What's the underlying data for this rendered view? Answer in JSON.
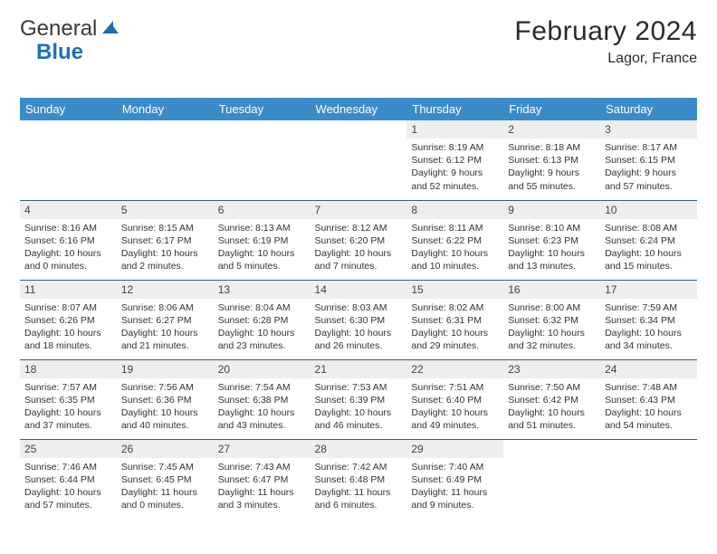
{
  "brand": {
    "part1": "General",
    "part2": "Blue",
    "logo_color": "#1f6fb2"
  },
  "title": "February 2024",
  "location": "Lagor, France",
  "colors": {
    "header_bg": "#3b8bc9",
    "header_fg": "#ffffff",
    "row_border": "#2f5f8f",
    "daynum_bg": "#eeeeee",
    "text": "#333333"
  },
  "fonts": {
    "title_size": 30,
    "location_size": 16,
    "weekday_size": 13,
    "daynum_size": 12,
    "cell_size": 10.5
  },
  "weekdays": [
    "Sunday",
    "Monday",
    "Tuesday",
    "Wednesday",
    "Thursday",
    "Friday",
    "Saturday"
  ],
  "grid": [
    [
      {
        "blank": true
      },
      {
        "blank": true
      },
      {
        "blank": true
      },
      {
        "blank": true
      },
      {
        "day": "1",
        "sunrise": "Sunrise: 8:19 AM",
        "sunset": "Sunset: 6:12 PM",
        "dl1": "Daylight: 9 hours",
        "dl2": "and 52 minutes."
      },
      {
        "day": "2",
        "sunrise": "Sunrise: 8:18 AM",
        "sunset": "Sunset: 6:13 PM",
        "dl1": "Daylight: 9 hours",
        "dl2": "and 55 minutes."
      },
      {
        "day": "3",
        "sunrise": "Sunrise: 8:17 AM",
        "sunset": "Sunset: 6:15 PM",
        "dl1": "Daylight: 9 hours",
        "dl2": "and 57 minutes."
      }
    ],
    [
      {
        "day": "4",
        "sunrise": "Sunrise: 8:16 AM",
        "sunset": "Sunset: 6:16 PM",
        "dl1": "Daylight: 10 hours",
        "dl2": "and 0 minutes."
      },
      {
        "day": "5",
        "sunrise": "Sunrise: 8:15 AM",
        "sunset": "Sunset: 6:17 PM",
        "dl1": "Daylight: 10 hours",
        "dl2": "and 2 minutes."
      },
      {
        "day": "6",
        "sunrise": "Sunrise: 8:13 AM",
        "sunset": "Sunset: 6:19 PM",
        "dl1": "Daylight: 10 hours",
        "dl2": "and 5 minutes."
      },
      {
        "day": "7",
        "sunrise": "Sunrise: 8:12 AM",
        "sunset": "Sunset: 6:20 PM",
        "dl1": "Daylight: 10 hours",
        "dl2": "and 7 minutes."
      },
      {
        "day": "8",
        "sunrise": "Sunrise: 8:11 AM",
        "sunset": "Sunset: 6:22 PM",
        "dl1": "Daylight: 10 hours",
        "dl2": "and 10 minutes."
      },
      {
        "day": "9",
        "sunrise": "Sunrise: 8:10 AM",
        "sunset": "Sunset: 6:23 PM",
        "dl1": "Daylight: 10 hours",
        "dl2": "and 13 minutes."
      },
      {
        "day": "10",
        "sunrise": "Sunrise: 8:08 AM",
        "sunset": "Sunset: 6:24 PM",
        "dl1": "Daylight: 10 hours",
        "dl2": "and 15 minutes."
      }
    ],
    [
      {
        "day": "11",
        "sunrise": "Sunrise: 8:07 AM",
        "sunset": "Sunset: 6:26 PM",
        "dl1": "Daylight: 10 hours",
        "dl2": "and 18 minutes."
      },
      {
        "day": "12",
        "sunrise": "Sunrise: 8:06 AM",
        "sunset": "Sunset: 6:27 PM",
        "dl1": "Daylight: 10 hours",
        "dl2": "and 21 minutes."
      },
      {
        "day": "13",
        "sunrise": "Sunrise: 8:04 AM",
        "sunset": "Sunset: 6:28 PM",
        "dl1": "Daylight: 10 hours",
        "dl2": "and 23 minutes."
      },
      {
        "day": "14",
        "sunrise": "Sunrise: 8:03 AM",
        "sunset": "Sunset: 6:30 PM",
        "dl1": "Daylight: 10 hours",
        "dl2": "and 26 minutes."
      },
      {
        "day": "15",
        "sunrise": "Sunrise: 8:02 AM",
        "sunset": "Sunset: 6:31 PM",
        "dl1": "Daylight: 10 hours",
        "dl2": "and 29 minutes."
      },
      {
        "day": "16",
        "sunrise": "Sunrise: 8:00 AM",
        "sunset": "Sunset: 6:32 PM",
        "dl1": "Daylight: 10 hours",
        "dl2": "and 32 minutes."
      },
      {
        "day": "17",
        "sunrise": "Sunrise: 7:59 AM",
        "sunset": "Sunset: 6:34 PM",
        "dl1": "Daylight: 10 hours",
        "dl2": "and 34 minutes."
      }
    ],
    [
      {
        "day": "18",
        "sunrise": "Sunrise: 7:57 AM",
        "sunset": "Sunset: 6:35 PM",
        "dl1": "Daylight: 10 hours",
        "dl2": "and 37 minutes."
      },
      {
        "day": "19",
        "sunrise": "Sunrise: 7:56 AM",
        "sunset": "Sunset: 6:36 PM",
        "dl1": "Daylight: 10 hours",
        "dl2": "and 40 minutes."
      },
      {
        "day": "20",
        "sunrise": "Sunrise: 7:54 AM",
        "sunset": "Sunset: 6:38 PM",
        "dl1": "Daylight: 10 hours",
        "dl2": "and 43 minutes."
      },
      {
        "day": "21",
        "sunrise": "Sunrise: 7:53 AM",
        "sunset": "Sunset: 6:39 PM",
        "dl1": "Daylight: 10 hours",
        "dl2": "and 46 minutes."
      },
      {
        "day": "22",
        "sunrise": "Sunrise: 7:51 AM",
        "sunset": "Sunset: 6:40 PM",
        "dl1": "Daylight: 10 hours",
        "dl2": "and 49 minutes."
      },
      {
        "day": "23",
        "sunrise": "Sunrise: 7:50 AM",
        "sunset": "Sunset: 6:42 PM",
        "dl1": "Daylight: 10 hours",
        "dl2": "and 51 minutes."
      },
      {
        "day": "24",
        "sunrise": "Sunrise: 7:48 AM",
        "sunset": "Sunset: 6:43 PM",
        "dl1": "Daylight: 10 hours",
        "dl2": "and 54 minutes."
      }
    ],
    [
      {
        "day": "25",
        "sunrise": "Sunrise: 7:46 AM",
        "sunset": "Sunset: 6:44 PM",
        "dl1": "Daylight: 10 hours",
        "dl2": "and 57 minutes."
      },
      {
        "day": "26",
        "sunrise": "Sunrise: 7:45 AM",
        "sunset": "Sunset: 6:45 PM",
        "dl1": "Daylight: 11 hours",
        "dl2": "and 0 minutes."
      },
      {
        "day": "27",
        "sunrise": "Sunrise: 7:43 AM",
        "sunset": "Sunset: 6:47 PM",
        "dl1": "Daylight: 11 hours",
        "dl2": "and 3 minutes."
      },
      {
        "day": "28",
        "sunrise": "Sunrise: 7:42 AM",
        "sunset": "Sunset: 6:48 PM",
        "dl1": "Daylight: 11 hours",
        "dl2": "and 6 minutes."
      },
      {
        "day": "29",
        "sunrise": "Sunrise: 7:40 AM",
        "sunset": "Sunset: 6:49 PM",
        "dl1": "Daylight: 11 hours",
        "dl2": "and 9 minutes."
      },
      {
        "blank": true
      },
      {
        "blank": true
      }
    ]
  ]
}
